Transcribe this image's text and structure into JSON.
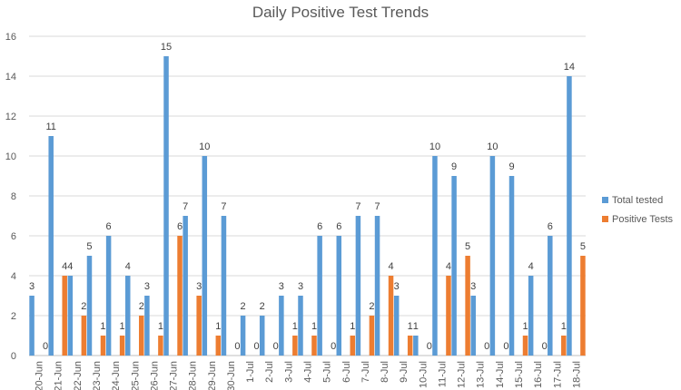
{
  "chart_data": {
    "type": "bar",
    "title": "Daily Positive Test Trends",
    "xlabel": "",
    "ylabel": "",
    "ylim": [
      0,
      16
    ],
    "yticks": [
      0,
      2,
      4,
      6,
      8,
      10,
      12,
      14,
      16
    ],
    "grid": true,
    "legend_position": "right",
    "data_labels": true,
    "categories": [
      "20-Jun",
      "21-Jun",
      "22-Jun",
      "23-Jun",
      "24-Jun",
      "25-Jun",
      "26-Jun",
      "27-Jun",
      "28-Jun",
      "29-Jun",
      "30-Jun",
      "1-Jul",
      "2-Jul",
      "3-Jul",
      "4-Jul",
      "5-Jul",
      "6-Jul",
      "7-Jul",
      "8-Jul",
      "9-Jul",
      "10-Jul",
      "11-Jul",
      "12-Jul",
      "13-Jul",
      "14-Jul",
      "15-Jul",
      "16-Jul",
      "17-Jul",
      "18-Jul"
    ],
    "series": [
      {
        "name": "Total tested",
        "color": "#5B9BD5",
        "values": [
          3,
          11,
          4,
          5,
          6,
          4,
          3,
          15,
          7,
          10,
          7,
          2,
          2,
          3,
          3,
          6,
          6,
          7,
          7,
          3,
          1,
          10,
          9,
          3,
          10,
          9,
          4,
          6,
          14
        ]
      },
      {
        "name": "Positive Tests",
        "color": "#ED7D31",
        "values": [
          0,
          4,
          2,
          1,
          1,
          2,
          1,
          6,
          3,
          1,
          0,
          0,
          0,
          1,
          1,
          0,
          1,
          2,
          4,
          1,
          0,
          4,
          5,
          0,
          0,
          1,
          0,
          1,
          5
        ]
      }
    ]
  }
}
